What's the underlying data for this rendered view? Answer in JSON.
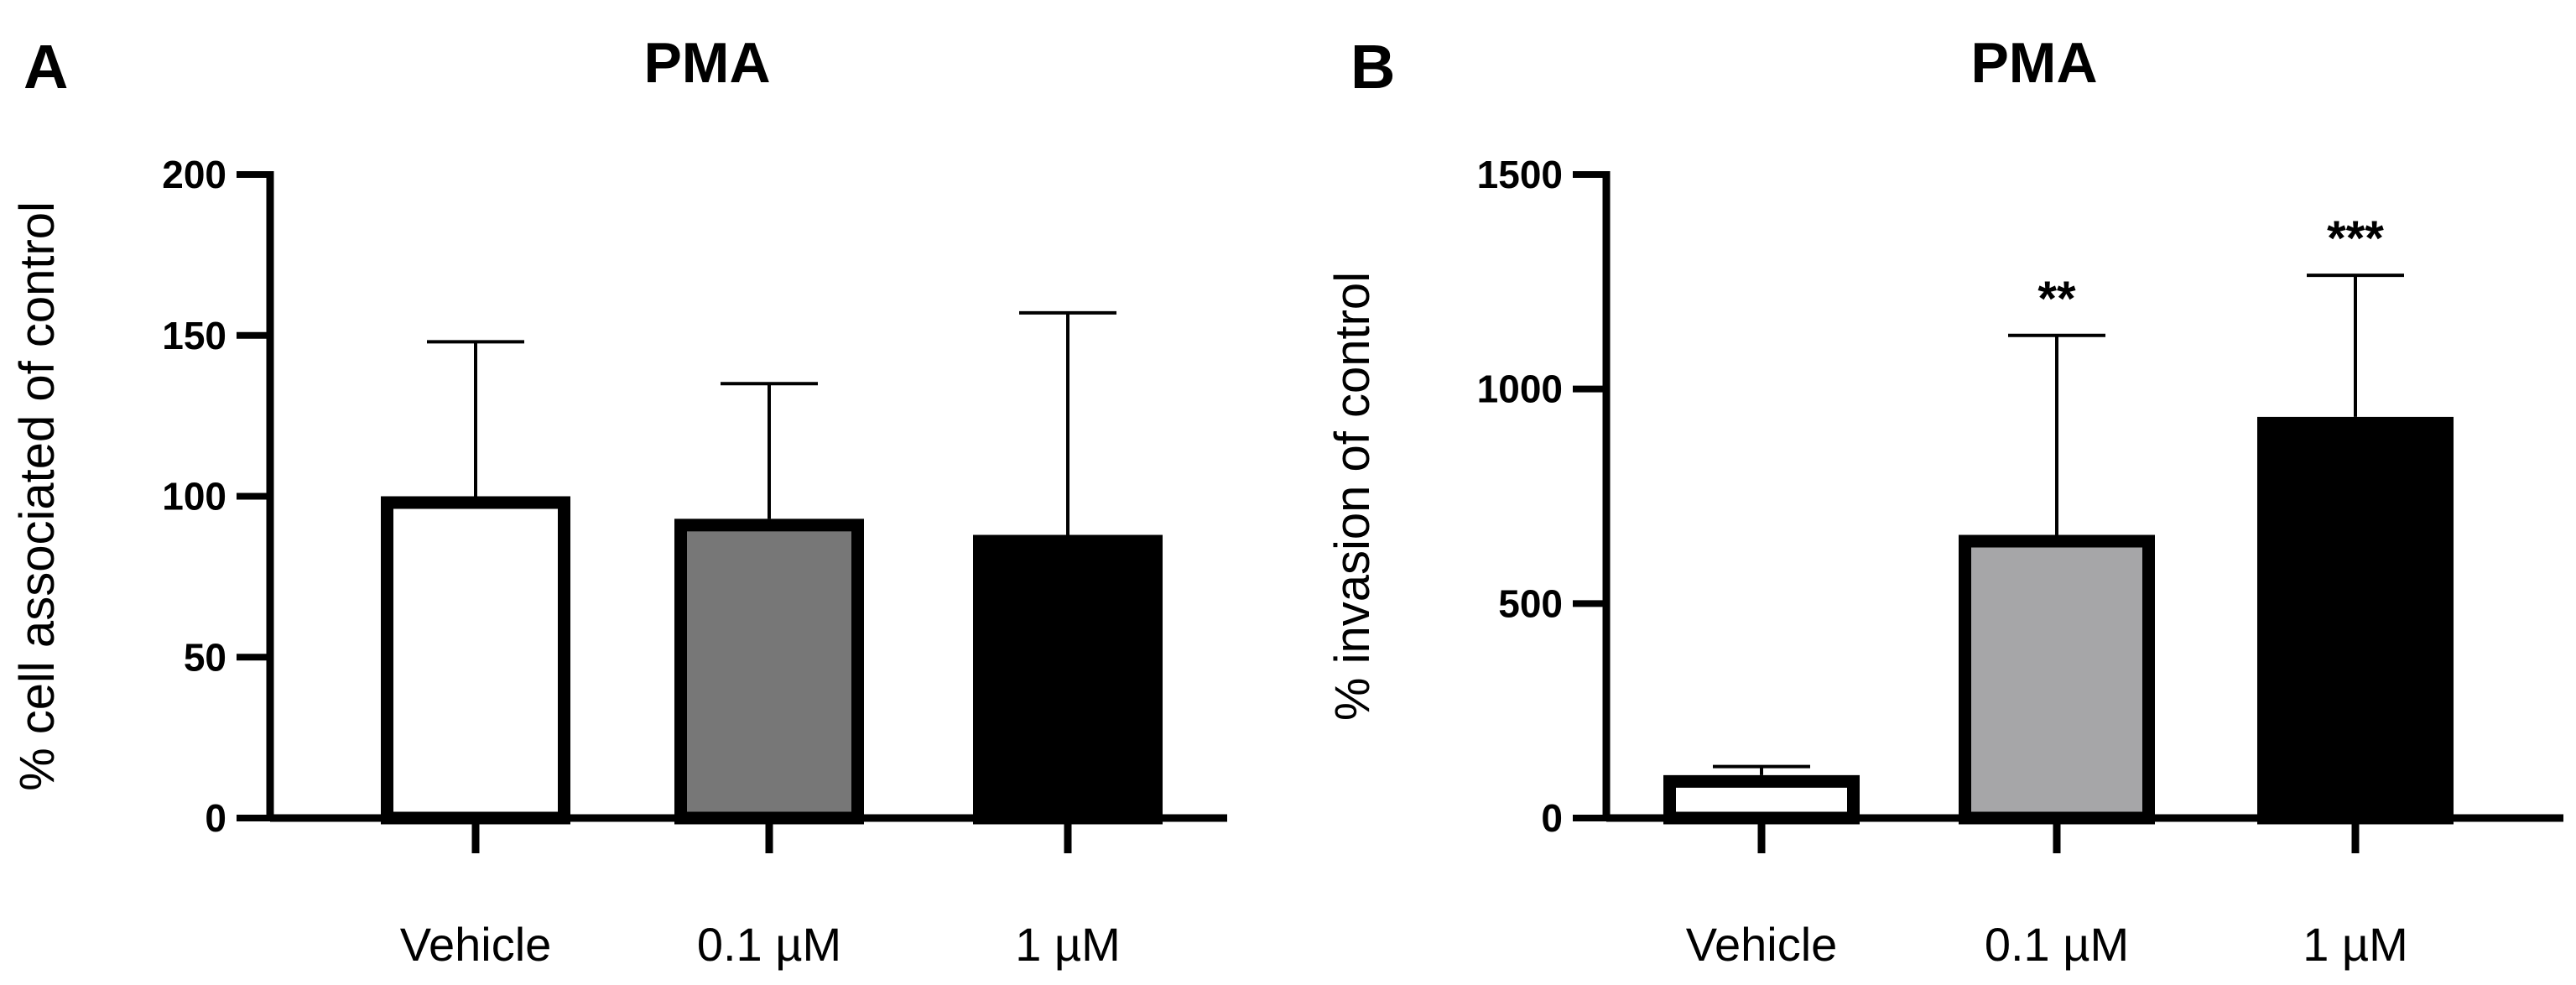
{
  "chart_data": [
    {
      "type": "bar",
      "panel_label": "A",
      "title": "PMA",
      "xlabel": "",
      "ylabel": "% cell associated of control",
      "ylim": [
        0,
        200
      ],
      "yticks": [
        0,
        50,
        100,
        150,
        200
      ],
      "ytick_labels": [
        "0",
        "50",
        "100",
        "150",
        "200"
      ],
      "categories": [
        "Vehicle",
        "0.1 µM",
        "1 µM"
      ],
      "values": [
        100,
        93,
        88
      ],
      "error_upper": [
        148,
        135,
        157
      ],
      "bar_fill": [
        "#ffffff",
        "#777777",
        "#000000"
      ],
      "significance": [
        "",
        "",
        ""
      ]
    },
    {
      "type": "bar",
      "panel_label": "B",
      "title": "PMA",
      "xlabel": "",
      "ylabel": "% invasion of control",
      "ylim": [
        0,
        1500
      ],
      "yticks": [
        0,
        500,
        1000,
        1500
      ],
      "ytick_labels": [
        "0",
        "500",
        "1000",
        "1500"
      ],
      "categories": [
        "Vehicle",
        "0.1 µM",
        "1 µM"
      ],
      "values": [
        100,
        660,
        935
      ],
      "error_upper": [
        120,
        1125,
        1265
      ],
      "bar_fill": [
        "#ffffff",
        "#a6a6a8",
        "#000000"
      ],
      "significance": [
        "",
        "**",
        "***"
      ]
    }
  ]
}
